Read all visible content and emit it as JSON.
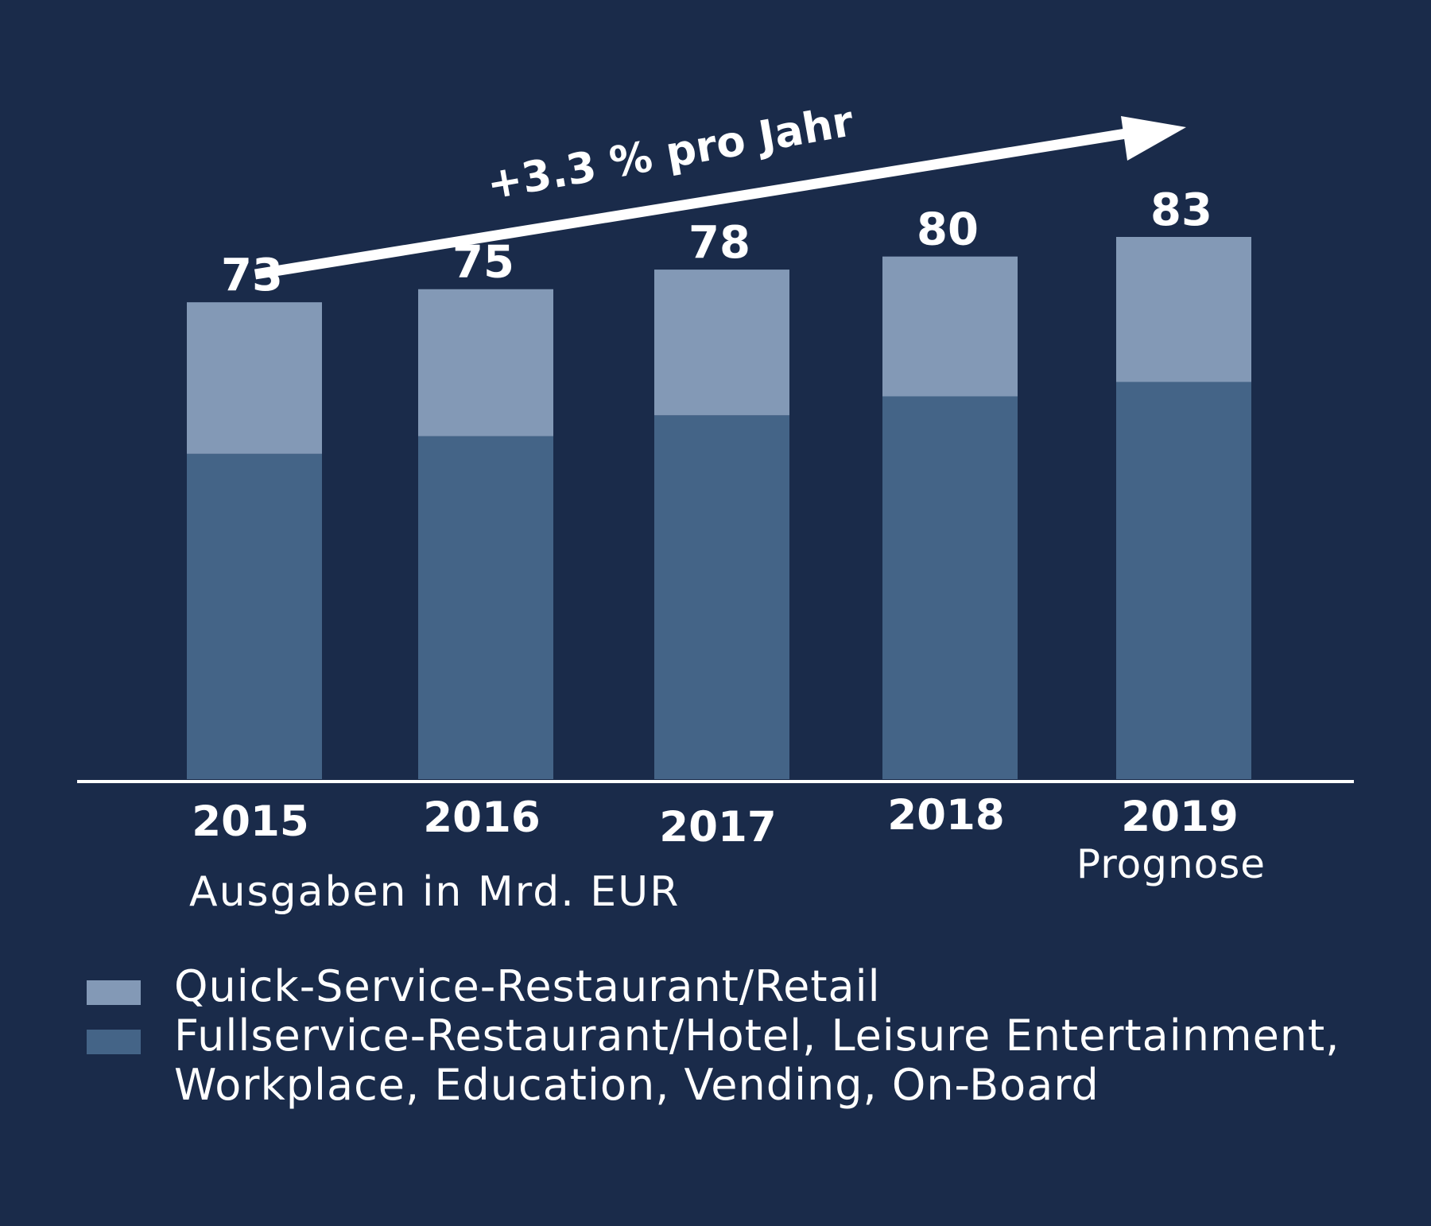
{
  "chart_data": {
    "type": "bar",
    "stacked": true,
    "categories": [
      "2015",
      "2016",
      "2017",
      "2018",
      "2019"
    ],
    "category_sublabels": [
      "",
      "",
      "",
      "",
      "Prognose"
    ],
    "series": [
      {
        "name": "Fullservice-Restaurant/Hotel, Leisure Entertainment, Workplace, Education, Vending, On-Board",
        "values": [
          49.8,
          52.5,
          55.7,
          58.6,
          60.8
        ],
        "color": "#446487"
      },
      {
        "name": "Quick-Service-Restaurant/Retail",
        "values": [
          23.2,
          22.5,
          22.3,
          21.4,
          22.2
        ],
        "color": "#8399b6"
      }
    ],
    "totals": [
      73,
      75,
      78,
      80,
      83
    ],
    "title": "",
    "subtitle": "Ausgaben in Mrd. EUR",
    "trend_annotation": "+3.3 % pro Jahr",
    "xlabel": "",
    "ylabel": "",
    "ylim": [
      0,
      83
    ],
    "grid": false,
    "legend_position": "bottom-left",
    "background": "#1a2b4a",
    "text_color": "#ffffff"
  },
  "legend": {
    "items": [
      {
        "label": "Quick-Service-Restaurant/Retail",
        "color": "#8399b6"
      },
      {
        "label": "Fullservice-Restaurant/Hotel, Leisure Entertainment,\nWorkplace, Education, Vending, On-Board",
        "color": "#446487"
      }
    ]
  }
}
